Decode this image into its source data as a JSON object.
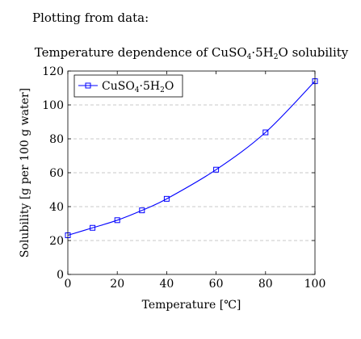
{
  "page": {
    "intro_text": "Plotting from data:"
  },
  "chart_data": {
    "type": "line",
    "title": "Temperature dependence of CuSO4·5H2O solubility",
    "title_parts": [
      "Temperature dependence of CuSO",
      "4",
      "·5H",
      "2",
      "O solubility"
    ],
    "xlabel": "Temperature [℃]",
    "ylabel": "Solubility [g per 100 g water]",
    "xlim": [
      0,
      100
    ],
    "ylim": [
      0,
      120
    ],
    "x_ticks": [
      0,
      20,
      40,
      60,
      80,
      100
    ],
    "y_ticks": [
      0,
      20,
      40,
      60,
      80,
      100,
      120
    ],
    "grid": "horizontal dashed",
    "legend_position": "top-left",
    "series": [
      {
        "name": "CuSO4·5H2O",
        "name_parts": [
          "CuSO",
          "4",
          "·5H",
          "2",
          "O"
        ],
        "color": "#0000ff",
        "marker": "square",
        "x": [
          0,
          10,
          20,
          30,
          40,
          60,
          80,
          100
        ],
        "y": [
          23.1,
          27.5,
          32.0,
          37.8,
          44.6,
          61.8,
          83.8,
          114.0
        ]
      }
    ]
  }
}
